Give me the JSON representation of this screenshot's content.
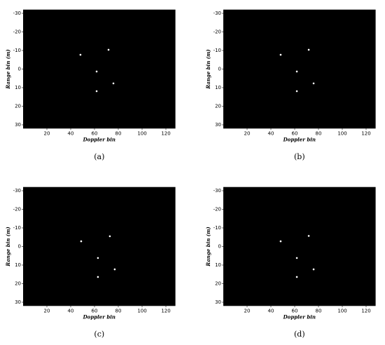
{
  "chart_data": [
    {
      "type": "scatter",
      "caption": "(a)",
      "x_label": "Doppler bin",
      "y_label": "Range bin (m)",
      "xlim": [
        0,
        128
      ],
      "xticks": [
        20,
        40,
        60,
        80,
        100,
        120
      ],
      "ylim": [
        -32,
        32
      ],
      "yticks": [
        -30,
        -20,
        -10,
        0,
        10,
        20,
        30
      ],
      "y_inverted": true,
      "background": "#000000",
      "series": [
        {
          "color": "#ffffff",
          "x": [
            48.2,
            71.8,
            61.8,
            75.9,
            61.8
          ],
          "values": [
            -7.7,
            -10.4,
            1.3,
            7.7,
            11.9
          ]
        }
      ]
    },
    {
      "type": "scatter",
      "caption": "(b)",
      "x_label": "Doppler bin",
      "y_label": "Range bin (m)",
      "xlim": [
        0,
        128
      ],
      "xticks": [
        20,
        40,
        60,
        80,
        100,
        120
      ],
      "ylim": [
        -32,
        32
      ],
      "yticks": [
        -30,
        -20,
        -10,
        0,
        10,
        20,
        30
      ],
      "y_inverted": true,
      "background": "#000000",
      "series": [
        {
          "color": "#ffffff",
          "x": [
            48.2,
            71.8,
            61.8,
            75.9,
            61.8
          ],
          "values": [
            -7.7,
            -10.4,
            1.3,
            7.7,
            11.9
          ]
        }
      ]
    },
    {
      "type": "scatter",
      "caption": "(c)",
      "x_label": "Doppler bin",
      "y_label": "Range bin (m)",
      "xlim": [
        0,
        128
      ],
      "xticks": [
        20,
        40,
        60,
        80,
        100,
        120
      ],
      "ylim": [
        -32,
        32
      ],
      "yticks": [
        -30,
        -20,
        -10,
        0,
        10,
        20,
        30
      ],
      "y_inverted": true,
      "background": "#000000",
      "series": [
        {
          "color": "#ffffff",
          "x": [
            48.8,
            72.9,
            62.9,
            77,
            62.9
          ],
          "values": [
            -2.8,
            -5.5,
            6.2,
            12.3,
            16.4
          ]
        }
      ]
    },
    {
      "type": "scatter",
      "caption": "(d)",
      "x_label": "Doppler bin",
      "y_label": "Range bin (m)",
      "xlim": [
        0,
        128
      ],
      "xticks": [
        20,
        40,
        60,
        80,
        100,
        120
      ],
      "ylim": [
        -32,
        32
      ],
      "yticks": [
        -30,
        -20,
        -10,
        0,
        10,
        20,
        30
      ],
      "y_inverted": true,
      "background": "#000000",
      "series": [
        {
          "color": "#ffffff",
          "x": [
            48.2,
            71.8,
            61.8,
            75.9,
            61.8
          ],
          "values": [
            -2.8,
            -5.7,
            6.2,
            12.3,
            16.4
          ]
        }
      ]
    }
  ]
}
